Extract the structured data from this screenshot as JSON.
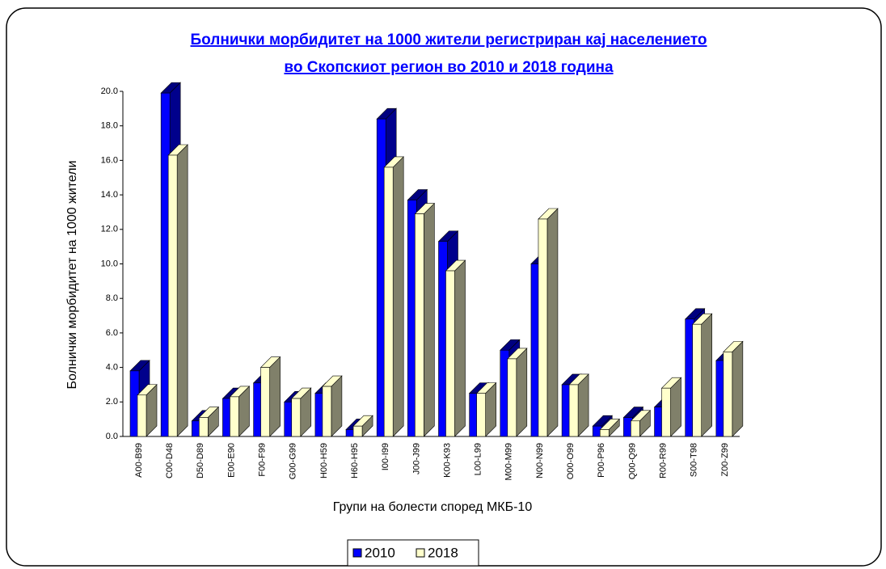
{
  "chart_data": {
    "type": "bar3d",
    "title": [
      "Болнички морбидитет на 1000 жители регистриран кај населението",
      "во Скопскиот регион во 2010 и 2018 година"
    ],
    "xlabel": "Групи на болести според МКБ-10",
    "ylabel": "Болнички морбидитет на 1000 жители",
    "categories": [
      "A00-B99",
      "C00-D48",
      "D50-D89",
      "E00-E90",
      "F00-F99",
      "G00-G99",
      "H00-H59",
      "H60-H95",
      "I00-I99",
      "J00-J99",
      "K00-K93",
      "L00-L99",
      "M00-M99",
      "N00-N99",
      "O00-O99",
      "P00-P96",
      "Q00-Q99",
      "R00-R99",
      "S00-T98",
      "Z00-Z99"
    ],
    "series": [
      {
        "name": "2010",
        "color": "#0000ff",
        "values": [
          3.8,
          19.9,
          0.9,
          2.2,
          3.1,
          2.0,
          2.5,
          0.4,
          18.4,
          13.7,
          11.3,
          2.5,
          5.0,
          10.0,
          3.0,
          0.6,
          1.1,
          1.7,
          6.8,
          4.4
        ]
      },
      {
        "name": "2018",
        "color": "#ffffcc",
        "values": [
          2.4,
          16.3,
          1.1,
          2.3,
          4.0,
          2.2,
          2.9,
          0.6,
          15.6,
          12.9,
          9.6,
          2.5,
          4.5,
          12.6,
          3.0,
          0.4,
          0.9,
          2.8,
          6.5,
          4.9
        ]
      }
    ],
    "ylim": [
      0,
      20
    ],
    "yticks": [
      {
        "value": 0,
        "label": "0.0"
      },
      {
        "value": 2,
        "label": "2.0"
      },
      {
        "value": 4,
        "label": "4.0"
      },
      {
        "value": 6,
        "label": "6.0"
      },
      {
        "value": 8,
        "label": "8.0"
      },
      {
        "value": 10,
        "label": "10.0"
      },
      {
        "value": 12,
        "label": "12.0"
      },
      {
        "value": 14,
        "label": "14.0"
      },
      {
        "value": 16,
        "label": "16.0"
      },
      {
        "value": 18,
        "label": "18.0"
      },
      {
        "value": 20,
        "label": "20.0"
      }
    ],
    "legend": "bottom"
  }
}
